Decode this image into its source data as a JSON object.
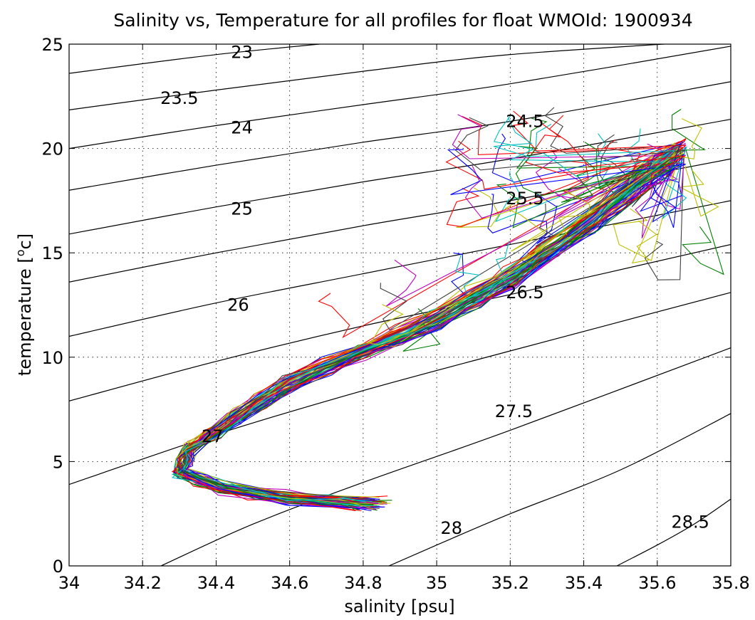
{
  "chart_data": {
    "type": "line",
    "title": "Salinity vs, Temperature for all profiles for float WMOId: 1900934",
    "xlabel": "salinity [psu]",
    "ylabel": "temperature [",
    "ylabel_sup": "o",
    "ylabel_tail": "c]",
    "xlim": [
      34,
      35.8
    ],
    "ylim": [
      0,
      25
    ],
    "xticks": [
      "34",
      "34.2",
      "34.4",
      "34.6",
      "34.8",
      "35",
      "35.2",
      "35.4",
      "35.6",
      "35.8"
    ],
    "yticks": [
      "0",
      "5",
      "10",
      "15",
      "20",
      "25"
    ],
    "grid": true,
    "density_contours": [
      {
        "sigma": "23",
        "label": {
          "s": 34.47,
          "t": 24.6
        }
      },
      {
        "sigma": "23.5",
        "label": {
          "s": 34.3,
          "t": 22.4
        }
      },
      {
        "sigma": "24",
        "label": {
          "s": 34.47,
          "t": 21.0
        }
      },
      {
        "sigma": "24.5",
        "label": {
          "s": 35.24,
          "t": 21.3
        }
      },
      {
        "sigma": "25",
        "label": {
          "s": 34.47,
          "t": 17.1
        }
      },
      {
        "sigma": "25.5",
        "label": {
          "s": 35.24,
          "t": 17.6
        }
      },
      {
        "sigma": "26",
        "label": {
          "s": 34.46,
          "t": 12.5
        }
      },
      {
        "sigma": "26.5",
        "label": {
          "s": 35.24,
          "t": 13.1
        }
      },
      {
        "sigma": "27",
        "label": {
          "s": 34.39,
          "t": 6.2
        }
      },
      {
        "sigma": "27.5",
        "label": {
          "s": 35.21,
          "t": 7.4
        }
      },
      {
        "sigma": "28",
        "label": {
          "s": 35.04,
          "t": 1.8
        }
      },
      {
        "sigma": "28.5",
        "label": {
          "s": 35.69,
          "t": 2.1
        }
      }
    ],
    "density_contour_lines": [
      [
        [
          34.0,
          23.6
        ],
        [
          34.4,
          24.5
        ],
        [
          34.8,
          25.2
        ]
      ],
      [
        [
          34.0,
          21.85
        ],
        [
          34.4,
          22.8
        ],
        [
          34.8,
          23.7
        ],
        [
          35.2,
          24.5
        ],
        [
          35.8,
          25.2
        ]
      ],
      [
        [
          34.0,
          20.0
        ],
        [
          34.4,
          21.1
        ],
        [
          34.8,
          22.1
        ],
        [
          35.2,
          23.1
        ],
        [
          35.8,
          24.9
        ]
      ],
      [
        [
          34.0,
          18.0
        ],
        [
          34.4,
          19.2
        ],
        [
          34.8,
          20.3
        ],
        [
          35.2,
          21.3
        ],
        [
          35.8,
          23.2
        ]
      ],
      [
        [
          34.0,
          15.9
        ],
        [
          34.4,
          17.2
        ],
        [
          34.8,
          18.4
        ],
        [
          35.2,
          19.5
        ],
        [
          35.8,
          21.4
        ]
      ],
      [
        [
          34.0,
          13.6
        ],
        [
          34.4,
          15.0
        ],
        [
          34.8,
          16.3
        ],
        [
          35.2,
          17.5
        ],
        [
          35.8,
          19.5
        ]
      ],
      [
        [
          34.0,
          11.0
        ],
        [
          34.4,
          12.6
        ],
        [
          34.8,
          14.0
        ],
        [
          35.2,
          15.4
        ],
        [
          35.8,
          17.5
        ]
      ],
      [
        [
          34.0,
          7.9
        ],
        [
          34.4,
          9.8
        ],
        [
          34.8,
          11.5
        ],
        [
          35.2,
          13.0
        ],
        [
          35.8,
          15.4
        ]
      ],
      [
        [
          34.0,
          3.9
        ],
        [
          34.4,
          6.3
        ],
        [
          34.8,
          8.4
        ],
        [
          35.2,
          10.3
        ],
        [
          35.8,
          13.1
        ]
      ],
      [
        [
          34.25,
          0.0
        ],
        [
          34.5,
          2.0
        ],
        [
          34.8,
          4.0
        ],
        [
          35.2,
          6.5
        ],
        [
          35.8,
          10.45
        ]
      ],
      [
        [
          34.87,
          0.0
        ],
        [
          35.0,
          1.0
        ],
        [
          35.2,
          2.5
        ],
        [
          35.5,
          4.6
        ],
        [
          35.8,
          7.3
        ]
      ],
      [
        [
          35.49,
          0.0
        ],
        [
          35.6,
          1.0
        ],
        [
          35.7,
          2.0
        ],
        [
          35.8,
          3.2
        ]
      ]
    ],
    "profile_colors": [
      "#0000ff",
      "#008000",
      "#ff0000",
      "#00bfbf",
      "#bf00bf",
      "#bfbf00",
      "#404040"
    ],
    "profile_count": 60,
    "profile_envelope": {
      "upper": [
        [
          35.66,
          20.5
        ],
        [
          35.56,
          19.3
        ],
        [
          35.42,
          17.0
        ],
        [
          35.2,
          14.3
        ],
        [
          35.0,
          12.3
        ],
        [
          34.8,
          10.7
        ],
        [
          34.6,
          9.2
        ],
        [
          34.45,
          7.4
        ],
        [
          34.33,
          5.8
        ],
        [
          34.3,
          4.7
        ],
        [
          34.42,
          4.0
        ],
        [
          34.6,
          3.5
        ],
        [
          34.87,
          3.2
        ]
      ],
      "lower": [
        [
          35.66,
          19.2
        ],
        [
          35.56,
          17.8
        ],
        [
          35.42,
          16.0
        ],
        [
          35.2,
          13.3
        ],
        [
          35.0,
          11.4
        ],
        [
          34.8,
          9.9
        ],
        [
          34.6,
          8.4
        ],
        [
          34.45,
          6.8
        ],
        [
          34.33,
          5.4
        ],
        [
          34.3,
          4.3
        ],
        [
          34.42,
          3.5
        ],
        [
          34.6,
          3.0
        ],
        [
          34.78,
          2.7
        ]
      ]
    },
    "surface_scatter": {
      "s_range": [
        35.05,
        35.72
      ],
      "t_range": [
        15.5,
        22.1
      ],
      "tail_s_range": [
        34.65,
        35.1
      ],
      "tail_t_range": [
        12.0,
        15.5
      ]
    }
  }
}
